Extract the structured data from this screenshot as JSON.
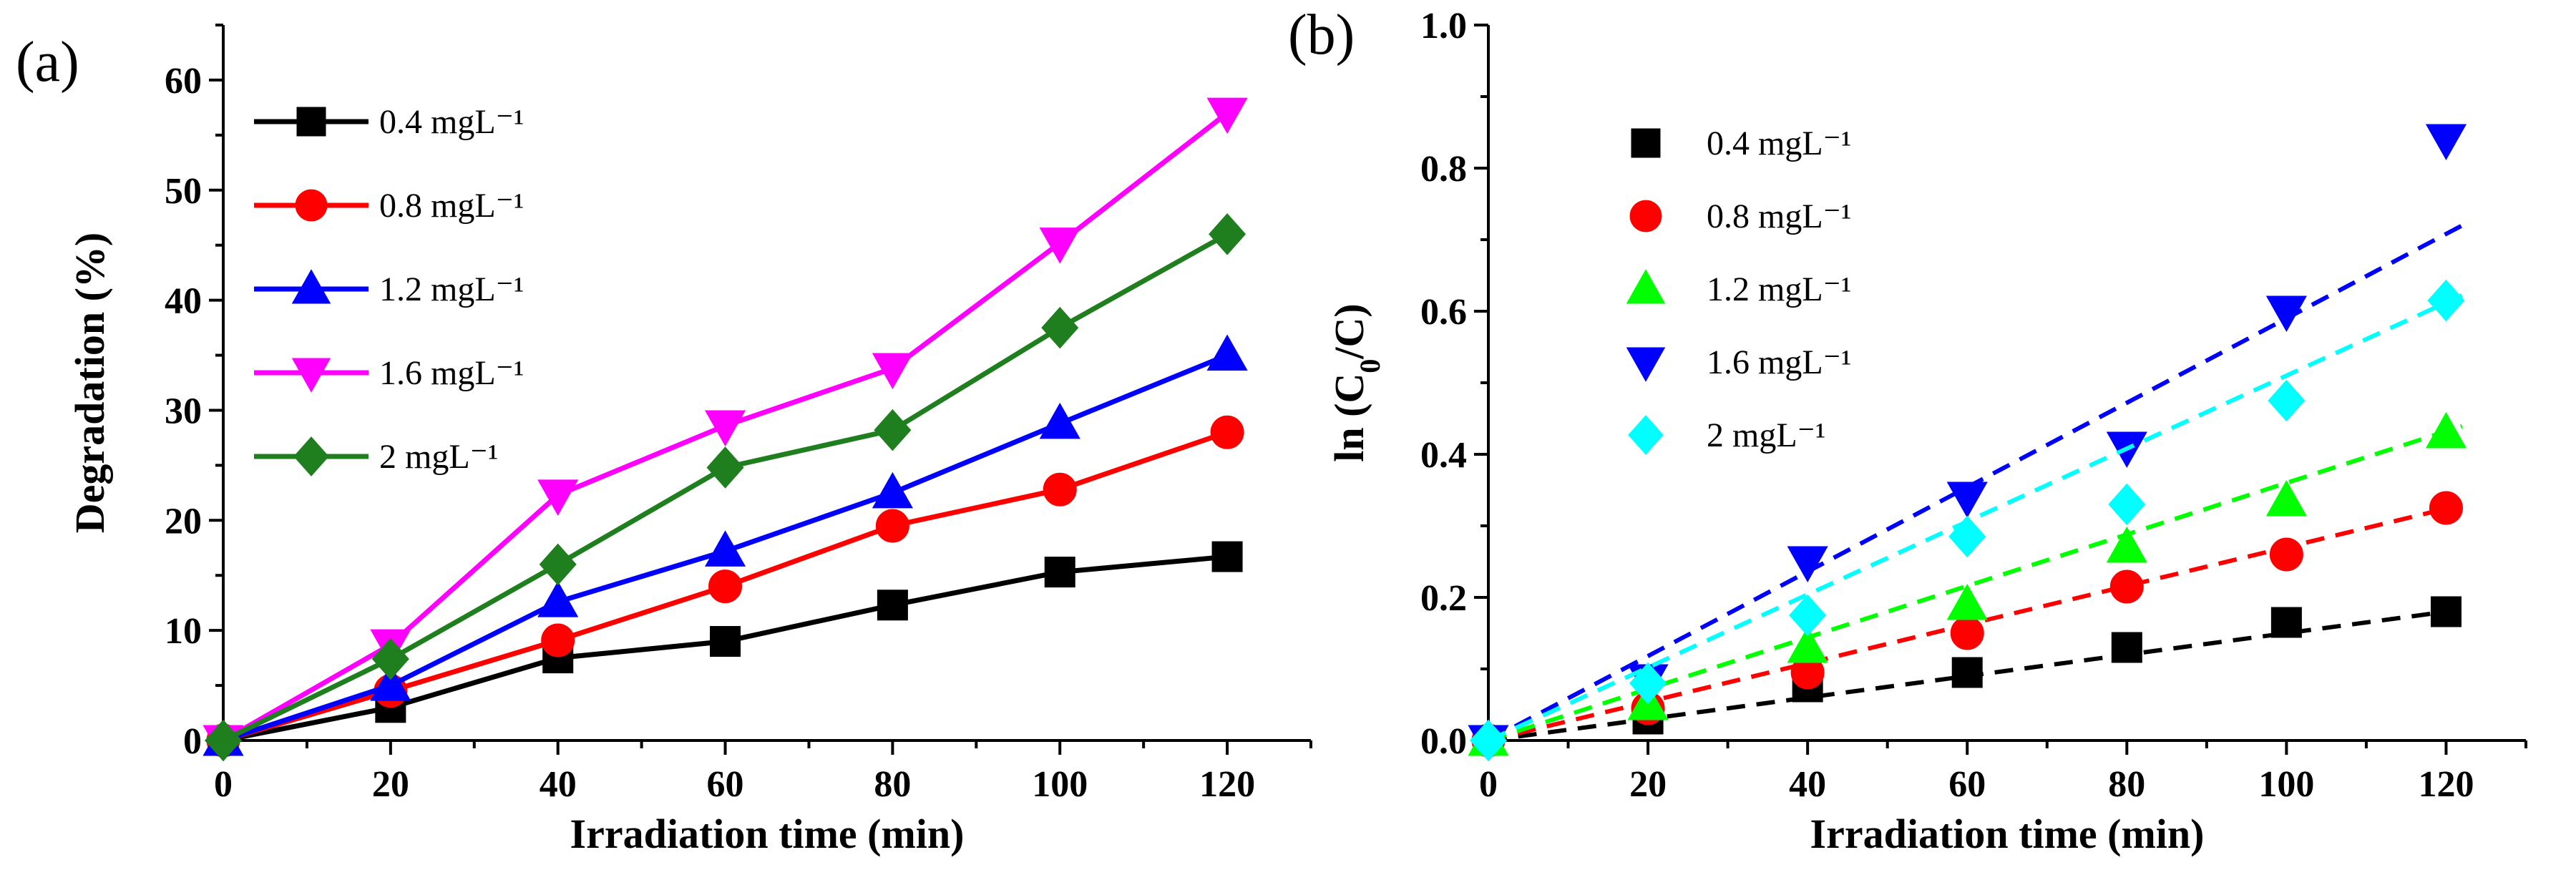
{
  "chart_data": [
    {
      "panel": "(a)",
      "type": "line",
      "xlabel": "Irradiation time (min)",
      "ylabel": "Degradation (%)",
      "xlim": [
        0,
        130
      ],
      "ylim": [
        0,
        65
      ],
      "xticks": [
        0,
        20,
        40,
        60,
        80,
        100,
        120
      ],
      "yticks": [
        0,
        10,
        20,
        30,
        40,
        50,
        60
      ],
      "legend_position": "top-left",
      "x": [
        0,
        20,
        40,
        60,
        80,
        100,
        120
      ],
      "series": [
        {
          "name": "0.4 mgL⁻¹",
          "color": "#000000",
          "marker": "square",
          "values": [
            0,
            3,
            7.5,
            9,
            12.3,
            15.3,
            16.7
          ]
        },
        {
          "name": "0.8 mgL⁻¹",
          "color": "#ff0000",
          "marker": "circle",
          "values": [
            0,
            4.5,
            9.1,
            14,
            19.5,
            22.8,
            28
          ]
        },
        {
          "name": "1.2 mgL⁻¹",
          "color": "#0000ff",
          "marker": "triangle-up",
          "values": [
            0,
            5,
            12.6,
            17.2,
            22.5,
            28.8,
            35
          ]
        },
        {
          "name": "1.6 mgL⁻¹",
          "color": "#ff00ff",
          "marker": "triangle-down",
          "values": [
            0,
            8.7,
            22.3,
            28.6,
            33.8,
            45.2,
            57
          ]
        },
        {
          "name": "2 mgL⁻¹",
          "color": "#1f7f1f",
          "marker": "diamond",
          "values": [
            0,
            7.4,
            16,
            24.8,
            28.2,
            37.5,
            46
          ]
        }
      ]
    },
    {
      "panel": "(b)",
      "type": "scatter",
      "xlabel": "Irradiation time (min)",
      "ylabel_main": "ln (C",
      "ylabel_sub": "0",
      "ylabel_end": "/C)",
      "xlim": [
        0,
        130
      ],
      "ylim": [
        0,
        1.0
      ],
      "xticks": [
        0,
        20,
        40,
        60,
        80,
        100,
        120
      ],
      "yticks": [
        0.0,
        0.2,
        0.4,
        0.6,
        0.8,
        1.0
      ],
      "ytick_labels": [
        "0.0",
        "0.2",
        "0.4",
        "0.6",
        "0.8",
        "1.0"
      ],
      "legend_position": "top-left",
      "x": [
        0,
        20,
        40,
        60,
        80,
        100,
        120
      ],
      "series": [
        {
          "name": "0.4 mgL⁻¹",
          "color": "#000000",
          "marker": "square",
          "values": [
            0,
            0.03,
            0.075,
            0.095,
            0.13,
            0.165,
            0.18
          ],
          "fit_slope": 0.0015
        },
        {
          "name": "0.8 mgL⁻¹",
          "color": "#ff0000",
          "marker": "circle",
          "values": [
            0,
            0.045,
            0.095,
            0.15,
            0.215,
            0.26,
            0.325
          ],
          "fit_slope": 0.0027
        },
        {
          "name": "1.2 mgL⁻¹",
          "color": "#00ff00",
          "marker": "triangle-up",
          "values": [
            0,
            0.05,
            0.13,
            0.19,
            0.27,
            0.335,
            0.43
          ],
          "fit_slope": 0.0036
        },
        {
          "name": "1.6 mgL⁻¹",
          "color": "#0000ff",
          "marker": "triangle-down",
          "values": [
            0,
            0.085,
            0.25,
            0.34,
            0.41,
            0.6,
            0.84
          ],
          "fit_slope": 0.0059
        },
        {
          "name": "2 mgL⁻¹",
          "color": "#00ffff",
          "marker": "diamond",
          "values": [
            0,
            0.08,
            0.175,
            0.285,
            0.33,
            0.475,
            0.615
          ],
          "fit_slope": 0.0051
        }
      ]
    }
  ]
}
